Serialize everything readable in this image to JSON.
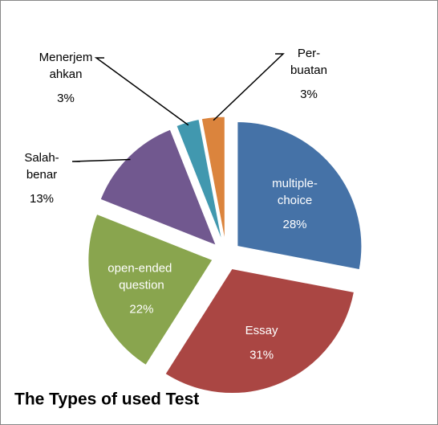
{
  "chart_data": {
    "type": "pie",
    "title": "The Types of used Test",
    "categories": [
      "multiple-choice",
      "Essay",
      "open-ended question",
      "Salah-benar",
      "Menerjemahkan",
      "Per-buatan"
    ],
    "values": [
      28,
      31,
      22,
      13,
      3,
      3
    ],
    "value_labels": [
      "28%",
      "31%",
      "22%",
      "13%",
      "3%",
      "3%"
    ],
    "colors": [
      "#4572A7",
      "#AA4643",
      "#89A54E",
      "#71588F",
      "#4198AF",
      "#DB843D"
    ]
  }
}
